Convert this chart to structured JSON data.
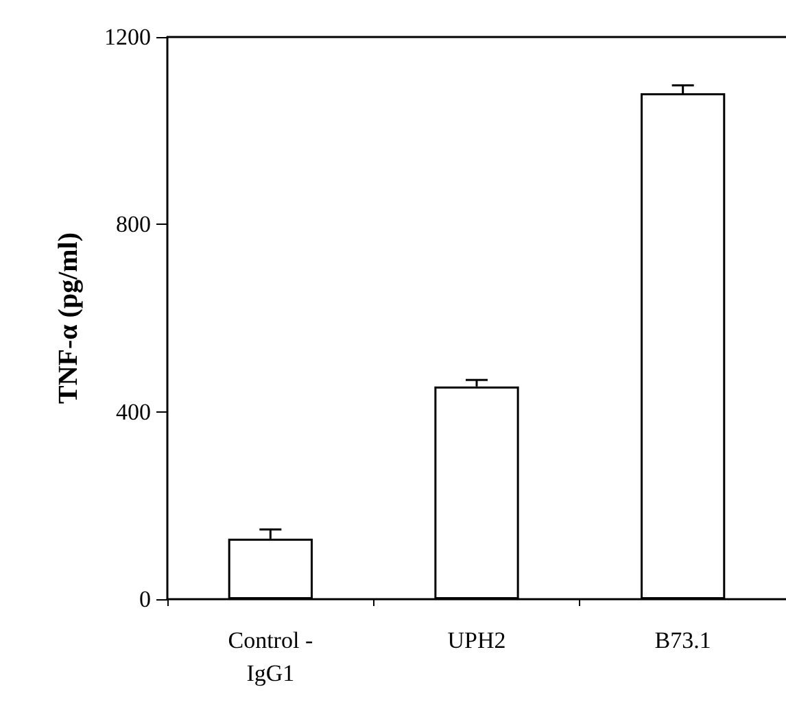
{
  "chart_data": {
    "type": "bar",
    "ylabel": "TNF-α (pg/ml)",
    "categories": [
      "Control -\nIgG1",
      "UPH2",
      "B73.1"
    ],
    "values": [
      129,
      454,
      1080
    ],
    "errors": [
      20,
      14,
      17
    ],
    "color": "#ffffff",
    "ylim": [
      0,
      1200
    ],
    "yticks": [
      0,
      400,
      800,
      1200
    ],
    "grid": false
  }
}
